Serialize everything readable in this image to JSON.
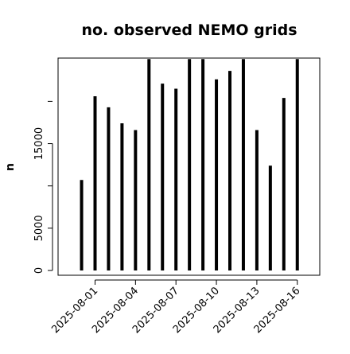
{
  "chart_data": {
    "type": "bar",
    "title": "no. observed NEMO grids",
    "xlabel": "",
    "ylabel": "n",
    "categories": [
      "2025-07-31",
      "2025-08-01",
      "2025-08-02",
      "2025-08-03",
      "2025-08-04",
      "2025-08-05",
      "2025-08-06",
      "2025-08-07",
      "2025-08-08",
      "2025-08-09",
      "2025-08-10",
      "2025-08-11",
      "2025-08-12",
      "2025-08-13",
      "2025-08-14",
      "2025-08-15",
      "2025-08-16"
    ],
    "values": [
      10700,
      20600,
      19300,
      17400,
      16600,
      25000,
      22100,
      21500,
      25000,
      25000,
      22600,
      23600,
      25000,
      16600,
      12400,
      20400,
      25000
    ],
    "ylim": [
      0,
      25000
    ],
    "yticks": [
      0,
      5000,
      15000
    ],
    "yticklabels": [
      "0",
      "5000",
      "15000"
    ],
    "xticklabels": [
      "2025-08-01",
      "2025-08-04",
      "2025-08-07",
      "2025-08-10",
      "2025-08-13",
      "2025-08-16"
    ],
    "grid": false,
    "bar_color": "#000000"
  }
}
